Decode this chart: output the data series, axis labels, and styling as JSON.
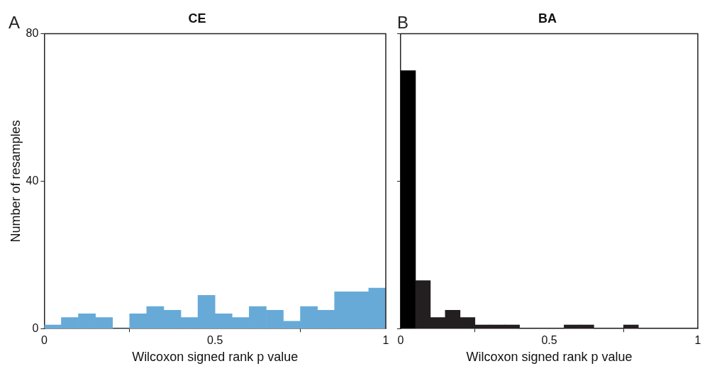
{
  "chart_data": [
    {
      "type": "histogram",
      "title": "CE",
      "xlabel": "Wilcoxon signed rank p value",
      "ylabel": "Number of resamples",
      "annotations": [
        "A"
      ],
      "bins": [
        0,
        0.05,
        0.1,
        0.15,
        0.2,
        0.25,
        0.3,
        0.35,
        0.4,
        0.45,
        0.5,
        0.55,
        0.6,
        0.65,
        0.7,
        0.75,
        0.8,
        0.85,
        0.9,
        0.95,
        1
      ],
      "values": [
        1,
        3,
        4,
        3,
        0,
        4,
        6,
        5,
        3,
        9,
        4,
        3,
        6,
        5,
        2,
        6,
        5,
        10,
        10,
        11
      ],
      "color": "#67aad8",
      "xlim": [
        0,
        1
      ],
      "xticks": [
        0,
        0.5,
        1
      ],
      "ylim": [
        0,
        80
      ],
      "yticks": [
        0,
        40,
        80
      ]
    },
    {
      "type": "histogram",
      "title": "BA",
      "xlabel": "Wilcoxon signed rank p value",
      "annotations": [
        "B"
      ],
      "bins": [
        0,
        0.05,
        0.1,
        0.15,
        0.2,
        0.25,
        0.3,
        0.35,
        0.4,
        0.45,
        0.5,
        0.55,
        0.6,
        0.65,
        0.7,
        0.75,
        0.8,
        0.85,
        0.9,
        0.95,
        1
      ],
      "values": [
        70,
        13,
        3,
        5,
        3,
        1,
        1,
        1,
        0,
        0,
        0,
        1,
        1,
        0,
        0,
        1,
        0,
        0,
        0,
        0
      ],
      "colors": [
        "#000000",
        "#231f20",
        "#231f20",
        "#231f20",
        "#231f20",
        "#231f20",
        "#231f20",
        "#231f20",
        "#231f20",
        "#231f20",
        "#231f20",
        "#231f20",
        "#231f20",
        "#231f20",
        "#231f20",
        "#231f20",
        "#231f20",
        "#231f20",
        "#231f20",
        "#231f20"
      ],
      "xlim": [
        0,
        1
      ],
      "xticks": [
        0,
        0.5,
        1
      ],
      "ylim": [
        0,
        80
      ],
      "yticks": [
        0,
        40,
        80
      ],
      "tick_labels": "x"
    }
  ]
}
